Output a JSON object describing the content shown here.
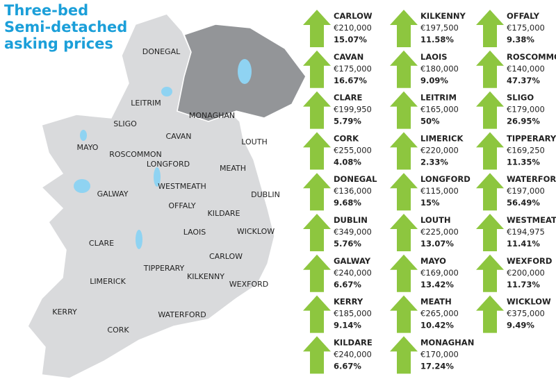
{
  "header": {
    "title_lines": [
      "Three-bed",
      "Semi-detached",
      "asking prices"
    ]
  },
  "map": {
    "labels": [
      "DONEGAL",
      "LEITRIM",
      "MONAGHAN",
      "SLIGO",
      "CAVAN",
      "LOUTH",
      "MAYO",
      "ROSCOMMON",
      "LONGFORD",
      "MEATH",
      "WESTMEATH",
      "GALWAY",
      "DUBLIN",
      "OFFALY",
      "KILDARE",
      "LAOIS",
      "WICKLOW",
      "CLARE",
      "CARLOW",
      "TIPPERARY",
      "LIMERICK",
      "KILKENNY",
      "WEXFORD",
      "KERRY",
      "WATERFORD",
      "CORK"
    ]
  },
  "counties": [
    {
      "name": "CARLOW",
      "price": "€210,000",
      "change": "15.07%"
    },
    {
      "name": "CAVAN",
      "price": "€175,000",
      "change": "16.67%"
    },
    {
      "name": "CLARE",
      "price": "€199,950",
      "change": "5.79%"
    },
    {
      "name": "CORK",
      "price": "€255,000",
      "change": "4.08%"
    },
    {
      "name": "DONEGAL",
      "price": "€136,000",
      "change": "9.68%"
    },
    {
      "name": "DUBLIN",
      "price": "€349,000",
      "change": "5.76%"
    },
    {
      "name": "GALWAY",
      "price": "€240,000",
      "change": "6.67%"
    },
    {
      "name": "KERRY",
      "price": "€185,000",
      "change": "9.14%"
    },
    {
      "name": "KILDARE",
      "price": "€240,000",
      "change": "6.67%"
    },
    {
      "name": "KILKENNY",
      "price": "€197,500",
      "change": "11.58%"
    },
    {
      "name": "LAOIS",
      "price": "€180,000",
      "change": "9.09%"
    },
    {
      "name": "LEITRIM",
      "price": "€165,000",
      "change": "50%"
    },
    {
      "name": "LIMERICK",
      "price": "€220,000",
      "change": "2.33%"
    },
    {
      "name": "LONGFORD",
      "price": "€115,000",
      "change": "15%"
    },
    {
      "name": "LOUTH",
      "price": "€225,000",
      "change": "13.07%"
    },
    {
      "name": "MAYO",
      "price": "€169,000",
      "change": "13.42%"
    },
    {
      "name": "MEATH",
      "price": "€265,000",
      "change": "10.42%"
    },
    {
      "name": "MONAGHAN",
      "price": "€170,000",
      "change": "17.24%"
    },
    {
      "name": "OFFALY",
      "price": "€175,000",
      "change": "9.38%"
    },
    {
      "name": "ROSCOMMON",
      "price": "€140,000",
      "change": "47.37%"
    },
    {
      "name": "SLIGO",
      "price": "€179,000",
      "change": "26.95%"
    },
    {
      "name": "TIPPERARY",
      "price": "€169,250",
      "change": "11.35%"
    },
    {
      "name": "WATERFORD",
      "price": "€197,000",
      "change": "56.49%"
    },
    {
      "name": "WESTMEATH",
      "price": "€194,975",
      "change": "11.41%"
    },
    {
      "name": "WEXFORD",
      "price": "€200,000",
      "change": "11.73%"
    },
    {
      "name": "WICKLOW",
      "price": "€375,000",
      "change": "9.49%"
    }
  ]
}
